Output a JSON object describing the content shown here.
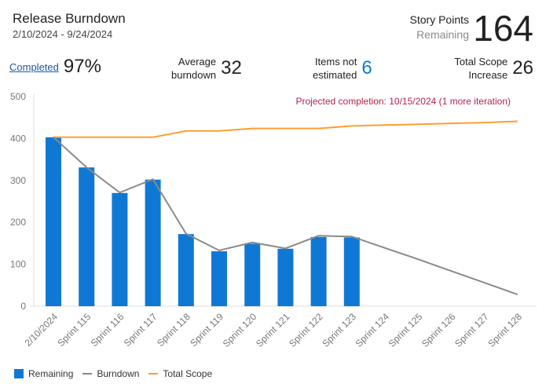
{
  "header": {
    "title": "Release Burndown",
    "date_range": "2/10/2024 - 9/24/2024",
    "story_points_label": "Story Points",
    "story_points_sub": "Remaining",
    "story_points_value": "164"
  },
  "metrics": {
    "completed_label": "Completed",
    "completed_value": "97%",
    "avg_label_1": "Average",
    "avg_label_2": "burndown",
    "avg_value": "32",
    "items_label_1": "Items not",
    "items_label_2": "estimated",
    "items_value": "6",
    "scope_label_1": "Total Scope",
    "scope_label_2": "Increase",
    "scope_value": "26"
  },
  "colors": {
    "remaining": "#0f78d4",
    "burndown": "#8a8a8a",
    "total_scope": "#ff9d2e",
    "projection_text": "#b4234a",
    "link": "#1a56a8"
  },
  "chart_data": {
    "type": "bar",
    "annotation": "Projected completion: 10/15/2024 (1 more iteration)",
    "categories": [
      "2/10/2024",
      "Sprint 115",
      "Sprint 116",
      "Sprint 117",
      "Sprint 118",
      "Sprint 119",
      "Sprint 120",
      "Sprint 121",
      "Sprint 122",
      "Sprint 123",
      "Sprint 124",
      "Sprint 125",
      "Sprint 126",
      "Sprint 127",
      "Sprint 128"
    ],
    "ylim": [
      0,
      500
    ],
    "yticks": [
      0,
      100,
      200,
      300,
      400,
      500
    ],
    "grid": false,
    "legend_placement": "bottom-left",
    "series": [
      {
        "name": "Remaining",
        "type": "bar",
        "values": [
          403,
          331,
          270,
          302,
          172,
          131,
          149,
          137,
          165,
          164,
          null,
          null,
          null,
          null,
          null
        ]
      },
      {
        "name": "Burndown",
        "type": "line",
        "values": [
          403,
          331,
          271,
          303,
          173,
          133,
          152,
          138,
          168,
          166,
          139,
          112,
          84,
          56,
          28
        ]
      },
      {
        "name": "Total Scope",
        "type": "line",
        "values": [
          403,
          403,
          403,
          403,
          418,
          418,
          424,
          424,
          424,
          430,
          432,
          434,
          436,
          438,
          441
        ]
      }
    ]
  }
}
